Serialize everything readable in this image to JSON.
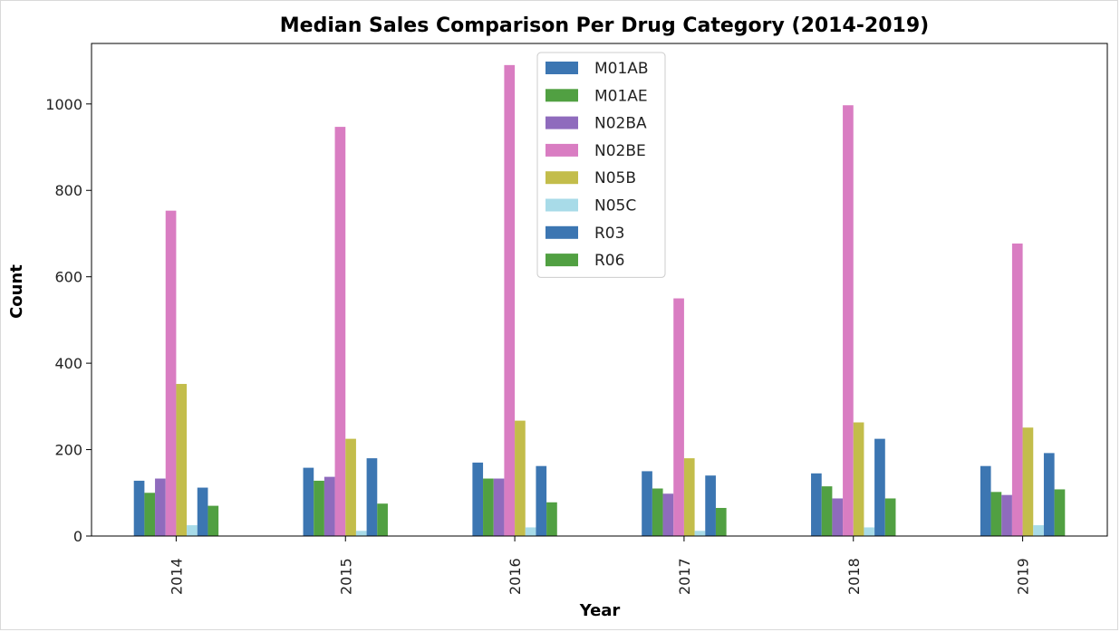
{
  "chart_data": {
    "type": "bar",
    "title": "Median Sales Comparison Per Drug Category (2014-2019)",
    "xlabel": "Year",
    "ylabel": "Count",
    "categories": [
      "2014",
      "2015",
      "2016",
      "2017",
      "2018",
      "2019"
    ],
    "ylim": [
      0,
      1140
    ],
    "yticks": [
      0,
      200,
      400,
      600,
      800,
      1000
    ],
    "grid": false,
    "legend_position": "upper-center",
    "series": [
      {
        "name": "M01AB",
        "color": "#3c76b2",
        "values": [
          128,
          158,
          170,
          150,
          145,
          162
        ]
      },
      {
        "name": "M01AE",
        "color": "#51a042",
        "values": [
          100,
          128,
          133,
          110,
          115,
          102
        ]
      },
      {
        "name": "N02BA",
        "color": "#8f6bbd",
        "values": [
          133,
          137,
          133,
          98,
          87,
          95
        ]
      },
      {
        "name": "N02BE",
        "color": "#d97dc2",
        "values": [
          753,
          947,
          1090,
          550,
          997,
          677
        ]
      },
      {
        "name": "N05B",
        "color": "#c3bd4b",
        "values": [
          352,
          225,
          267,
          180,
          263,
          251
        ]
      },
      {
        "name": "N05C",
        "color": "#a8dbe8",
        "values": [
          25,
          12,
          20,
          12,
          20,
          25
        ]
      },
      {
        "name": "R03",
        "color": "#3c76b2",
        "values": [
          112,
          180,
          162,
          140,
          225,
          192
        ]
      },
      {
        "name": "R06",
        "color": "#51a042",
        "values": [
          70,
          75,
          78,
          65,
          87,
          108
        ]
      }
    ]
  }
}
